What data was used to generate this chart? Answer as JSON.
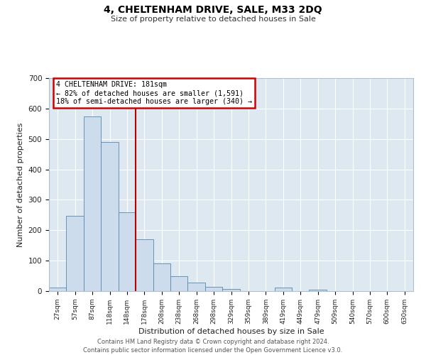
{
  "title": "4, CHELTENHAM DRIVE, SALE, M33 2DQ",
  "subtitle": "Size of property relative to detached houses in Sale",
  "xlabel": "Distribution of detached houses by size in Sale",
  "ylabel": "Number of detached properties",
  "bar_color": "#ccdcec",
  "bar_edge_color": "#5588aa",
  "background_color": "#dde8f0",
  "grid_color": "#ffffff",
  "bin_labels": [
    "27sqm",
    "57sqm",
    "87sqm",
    "118sqm",
    "148sqm",
    "178sqm",
    "208sqm",
    "238sqm",
    "268sqm",
    "298sqm",
    "329sqm",
    "359sqm",
    "389sqm",
    "419sqm",
    "449sqm",
    "479sqm",
    "509sqm",
    "540sqm",
    "570sqm",
    "600sqm",
    "630sqm"
  ],
  "bar_heights": [
    12,
    247,
    573,
    490,
    260,
    170,
    90,
    48,
    27,
    13,
    8,
    0,
    0,
    11,
    0,
    5,
    0,
    0,
    0,
    0,
    0
  ],
  "vline_position": 5.0,
  "vline_color": "#bb0000",
  "ylim": [
    0,
    700
  ],
  "yticks": [
    0,
    100,
    200,
    300,
    400,
    500,
    600,
    700
  ],
  "annotation_title": "4 CHELTENHAM DRIVE: 181sqm",
  "annotation_line1": "← 82% of detached houses are smaller (1,591)",
  "annotation_line2": "18% of semi-detached houses are larger (340) →",
  "annotation_box_edgecolor": "#cc0000",
  "footer_line1": "Contains HM Land Registry data © Crown copyright and database right 2024.",
  "footer_line2": "Contains public sector information licensed under the Open Government Licence v3.0."
}
